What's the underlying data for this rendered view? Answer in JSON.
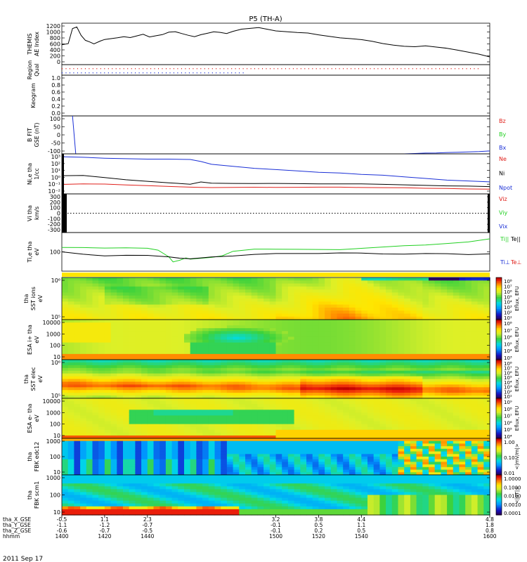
{
  "title": "P5 (TH-A)",
  "date_label": "2011 Sep 17",
  "colors": {
    "red": "#e0201b",
    "green": "#22d022",
    "blue": "#1a2fd6",
    "black": "#000000"
  },
  "chart_data": [
    {
      "type": "line",
      "id": "ae",
      "ylabel": [
        "THEMIS",
        "AE Index"
      ],
      "yticks": [
        "1200",
        "1000",
        "800",
        "600",
        "400",
        "200",
        "0"
      ],
      "ylim": [
        0,
        1250
      ],
      "x": [
        1400,
        1403,
        1405,
        1407,
        1409,
        1411,
        1413,
        1415,
        1418,
        1420,
        1423,
        1426,
        1429,
        1432,
        1435,
        1438,
        1441,
        1444,
        1447,
        1450,
        1453,
        1456,
        1459,
        1462,
        1465,
        1468,
        1471,
        1474,
        1477,
        1480,
        1484,
        1488,
        1492,
        1496,
        1500,
        1505,
        1510,
        1515,
        1520,
        1525,
        1530,
        1535,
        1540,
        1545,
        1550,
        1555,
        1560,
        1565,
        1570,
        1575,
        1580,
        1585,
        1590,
        1595,
        1600
      ],
      "y": [
        600,
        640,
        1100,
        1150,
        900,
        750,
        700,
        640,
        720,
        760,
        780,
        800,
        830,
        800,
        850,
        900,
        820,
        860,
        900,
        980,
        1000,
        950,
        900,
        860,
        920,
        960,
        1000,
        980,
        940,
        1000,
        1060,
        1080,
        1100,
        1050,
        1000,
        980,
        960,
        950,
        900,
        860,
        820,
        800,
        770,
        720,
        650,
        600,
        560,
        540,
        560,
        520,
        480,
        420,
        360,
        300,
        220
      ],
      "series_color": "black"
    },
    {
      "type": "scatter",
      "id": "region",
      "ylabel": [
        "Region",
        "Qual"
      ],
      "yticks": [],
      "rows": [
        {
          "name": "upper",
          "x_range": [
            1400,
            1596
          ],
          "color": "red",
          "dots": "dotted"
        },
        {
          "name": "lower",
          "x_range": [
            1400,
            1486
          ],
          "color": "blue",
          "dots": "dotted"
        }
      ]
    },
    {
      "type": "line",
      "id": "keogram",
      "ylabel": [
        "Keogram"
      ],
      "yticks": [
        "1.0",
        "0.8",
        "0.6",
        "0.4",
        "0.2",
        "0.0"
      ],
      "ylim": [
        0,
        1
      ],
      "series": []
    },
    {
      "type": "line",
      "id": "bfit",
      "ylabel": [
        "B FIT",
        "GSE (nT)"
      ],
      "yticks": [
        "100",
        "50",
        "0",
        "-50",
        "-100"
      ],
      "ylim": [
        -100,
        100
      ],
      "legend": [
        {
          "name": "Bz",
          "color": "red"
        },
        {
          "name": "By",
          "color": "green"
        },
        {
          "name": "Bx",
          "color": "blue"
        }
      ],
      "series": [
        {
          "name": "steep",
          "color": "blue",
          "x": [
            1405,
            1406.5
          ],
          "y": [
            100,
            -100
          ]
        },
        {
          "name": "Bx",
          "color": "blue",
          "x": [
            1560,
            1565,
            1570,
            1575,
            1580,
            1585,
            1590,
            1595,
            1600
          ],
          "y": [
            -100,
            -98,
            -96,
            -95,
            -93,
            -92,
            -90,
            -88,
            -85
          ]
        }
      ]
    },
    {
      "type": "line",
      "id": "density",
      "scale": "log",
      "ylabel": [
        "Ni,e tha",
        "1/cc"
      ],
      "yticks": [
        "10³",
        "10²",
        "10¹",
        "10⁰",
        "10⁻¹",
        "10⁻²"
      ],
      "ylim_log": [
        -2.3,
        3.2
      ],
      "legend": [
        {
          "name": "Ne",
          "color": "red"
        },
        {
          "name": "Ni",
          "color": "black"
        },
        {
          "name": "Npot",
          "color": "blue"
        }
      ],
      "series": [
        {
          "name": "Npot",
          "color": "blue",
          "x": [
            1400,
            1410,
            1420,
            1430,
            1440,
            1450,
            1460,
            1465,
            1470,
            1480,
            1490,
            1500,
            1510,
            1520,
            1530,
            1540,
            1550,
            1560,
            1570,
            1580,
            1590,
            1600
          ],
          "y": [
            2.8,
            2.75,
            2.65,
            2.6,
            2.55,
            2.55,
            2.5,
            2.2,
            1.8,
            1.5,
            1.2,
            1.0,
            0.8,
            0.6,
            0.5,
            0.3,
            0.2,
            0.0,
            -0.2,
            -0.4,
            -0.5,
            -0.6
          ]
        },
        {
          "name": "Ni",
          "color": "black",
          "x": [
            1400,
            1410,
            1420,
            1430,
            1440,
            1450,
            1460,
            1465,
            1470,
            1480,
            1490,
            1500,
            1510,
            1520,
            1530,
            1540,
            1550,
            1560,
            1570,
            1580,
            1590,
            1600
          ],
          "y": [
            0.2,
            0.25,
            0.0,
            -0.3,
            -0.5,
            -0.7,
            -0.9,
            -0.6,
            -0.8,
            -0.85,
            -0.9,
            -0.9,
            -0.95,
            -1.0,
            -1.0,
            -1.0,
            -1.05,
            -1.1,
            -1.15,
            -1.2,
            -1.2,
            -1.25
          ]
        },
        {
          "name": "Ne",
          "color": "red",
          "x": [
            1400,
            1410,
            1420,
            1430,
            1440,
            1450,
            1460,
            1465,
            1470,
            1480,
            1490,
            1500,
            1510,
            1520,
            1530,
            1540,
            1550,
            1560,
            1570,
            1580,
            1590,
            1600
          ],
          "y": [
            -1.0,
            -0.9,
            -0.9,
            -1.0,
            -1.1,
            -1.2,
            -1.3,
            -1.35,
            -1.4,
            -1.4,
            -1.4,
            -1.45,
            -1.45,
            -1.45,
            -1.45,
            -1.5,
            -1.5,
            -1.5,
            -1.55,
            -1.55,
            -1.6,
            -1.6
          ]
        }
      ]
    },
    {
      "type": "line",
      "id": "velocity",
      "ylabel": [
        "Vi tha",
        "km/s"
      ],
      "yticks": [
        "300",
        "200",
        "100",
        "0",
        "-100",
        "-200",
        "-300"
      ],
      "ylim": [
        -320,
        320
      ],
      "legend": [
        {
          "name": "Viz",
          "color": "red"
        },
        {
          "name": "Viy",
          "color": "green"
        },
        {
          "name": "Vix",
          "color": "blue"
        }
      ],
      "series": [
        {
          "name": "zero",
          "color": "black",
          "dotted": true,
          "x": [
            1400,
            1600
          ],
          "y": [
            0,
            0
          ]
        }
      ]
    },
    {
      "type": "line",
      "id": "temperature",
      "scale": "log",
      "ylabel": [
        "Ti,e tha",
        "eV"
      ],
      "yticks": [
        "100"
      ],
      "ylim_log": [
        1.1,
        3.7
      ],
      "legend": [
        {
          "name": "Ti||",
          "color": "green"
        },
        {
          "name": "Te||",
          "color": "black"
        },
        {
          "name": "Ti⊥",
          "color": "blue"
        },
        {
          "name": "Te⊥",
          "color": "red"
        }
      ],
      "series": [
        {
          "name": "Ti",
          "color": "green",
          "x": [
            1400,
            1410,
            1420,
            1430,
            1440,
            1445,
            1450,
            1452,
            1455,
            1458,
            1460,
            1465,
            1470,
            1475,
            1480,
            1490,
            1500,
            1510,
            1520,
            1530,
            1540,
            1550,
            1560,
            1570,
            1580,
            1590,
            1600
          ],
          "y": [
            2.7,
            2.7,
            2.68,
            2.7,
            2.68,
            2.55,
            2.1,
            1.75,
            1.85,
            2.0,
            1.9,
            1.95,
            2.0,
            2.1,
            2.4,
            2.55,
            2.55,
            2.55,
            2.55,
            2.55,
            2.65,
            2.75,
            2.85,
            2.9,
            3.0,
            3.1,
            3.3
          ]
        },
        {
          "name": "Te",
          "color": "black",
          "x": [
            1400,
            1410,
            1420,
            1430,
            1440,
            1445,
            1450,
            1455,
            1460,
            1465,
            1470,
            1480,
            1490,
            1500,
            1510,
            1520,
            1530,
            1540,
            1550,
            1560,
            1570,
            1580,
            1590,
            1600
          ],
          "y": [
            2.4,
            2.25,
            2.15,
            2.2,
            2.2,
            2.15,
            2.1,
            2.0,
            1.95,
            2.0,
            2.05,
            2.1,
            2.2,
            2.25,
            2.25,
            2.25,
            2.3,
            2.3,
            2.25,
            2.25,
            2.3,
            2.3,
            2.25,
            2.3
          ]
        }
      ]
    },
    {
      "type": "heatmap",
      "id": "sst_ions",
      "ylabel": [
        "tha",
        "SST ions",
        "eV"
      ],
      "yticks": [
        "10⁶",
        "10⁵"
      ],
      "cbar_label": "Eflux, EFU",
      "cbar_ticks": [
        "10⁸",
        "10⁷",
        "10⁶",
        "10⁵",
        "10⁴",
        "10³",
        "10²",
        "10¹"
      ]
    },
    {
      "type": "heatmap",
      "id": "esa_ions",
      "ylabel": [
        "ESA i+ tha",
        "eV"
      ],
      "yticks": [
        "10000",
        "1000",
        "100",
        "10"
      ],
      "cbar_label": "Eflux, EFU",
      "cbar_ticks": [
        "10⁸",
        "10⁷",
        "10⁶",
        "10⁵",
        "10⁴",
        "10³"
      ]
    },
    {
      "type": "heatmap",
      "id": "sst_elec",
      "ylabel": [
        "tha",
        "SST elec",
        "eV"
      ],
      "yticks": [
        "10⁶",
        "10⁵"
      ],
      "cbar_label": "Eflux, EFU",
      "cbar_ticks": [
        "10⁸",
        "10⁷",
        "10⁶",
        "10⁵",
        "10⁴",
        "10³",
        "10²",
        "10¹"
      ]
    },
    {
      "type": "heatmap",
      "id": "esa_elec",
      "ylabel": [
        "ESA e- tha",
        "eV"
      ],
      "yticks": [
        "10000",
        "1000",
        "100",
        "10"
      ],
      "cbar_label": "Eflux, EFU",
      "cbar_ticks": [
        "10⁹",
        "10⁸",
        "10⁷",
        "10⁶",
        "10⁵",
        "10⁴"
      ]
    },
    {
      "type": "heatmap",
      "id": "fbk_edc12",
      "ylabel": [
        "tha",
        "FBK edc12"
      ],
      "yticks": [
        "1000",
        "100",
        "10"
      ],
      "cbar_label": "<|mV/m|>",
      "cbar_ticks": [
        "1.00",
        "0.10",
        "0.01"
      ]
    },
    {
      "type": "heatmap",
      "id": "fbk_scm1",
      "ylabel": [
        "tha",
        "FBK scm1"
      ],
      "yticks": [
        "1000",
        "100",
        "10"
      ],
      "cbar_label": "<|nT|>",
      "cbar_ticks": [
        "1.0000",
        "0.1000",
        "0.0100",
        "0.0010",
        "0.0001"
      ]
    }
  ],
  "x_axis": {
    "row_labels": [
      "tha_X_GSE",
      "tha_Y_GSE",
      "tha_Z_GSE",
      "hhmm"
    ],
    "ticks": [
      {
        "x": 1400,
        "vals": [
          "-0.5",
          "-1.1",
          "-0.6",
          "1400"
        ]
      },
      {
        "x": 1420,
        "vals": [
          "1.1",
          "-1.2",
          "-0.7",
          "1420"
        ]
      },
      {
        "x": 1440,
        "vals": [
          "2.3",
          "-0.7",
          "-0.5",
          "1440"
        ]
      },
      {
        "x": 1500,
        "vals": [
          "3.2",
          "-0.1",
          "-0.1",
          "1500"
        ]
      },
      {
        "x": 1520,
        "vals": [
          "3.8",
          "0.5",
          "0.2",
          "1520"
        ]
      },
      {
        "x": 1540,
        "vals": [
          "4.4",
          "1.1",
          "0.5",
          "1540"
        ]
      },
      {
        "x": 1600,
        "vals": [
          "4.8",
          "1.8",
          "0.8",
          "1600"
        ]
      }
    ]
  }
}
